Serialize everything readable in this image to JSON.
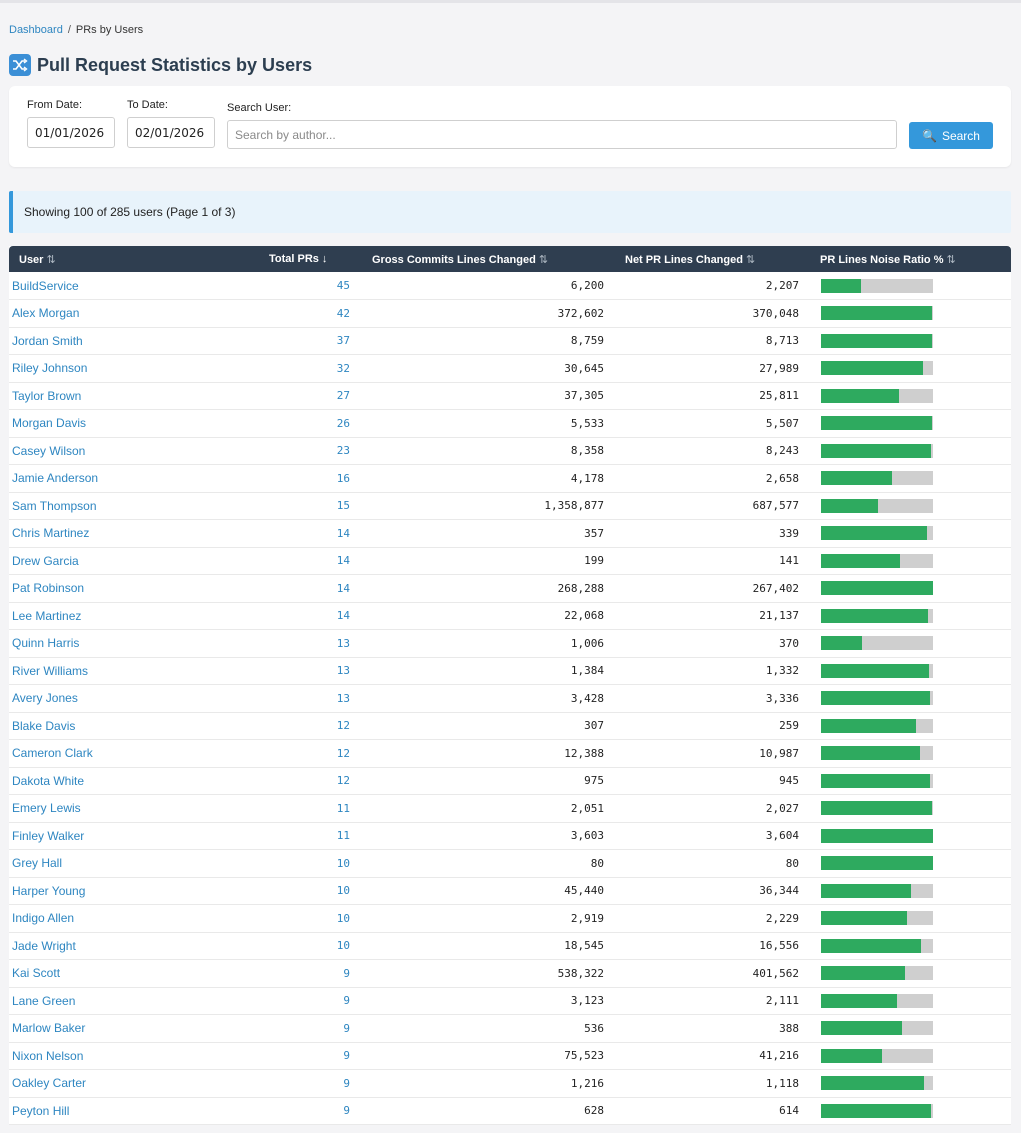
{
  "breadcrumb": {
    "home": "Dashboard",
    "separator": "/",
    "current": "PRs by Users"
  },
  "page": {
    "title": "Pull Request Statistics by Users",
    "icon": "shuffle-icon"
  },
  "filters": {
    "from_label": "From Date:",
    "from_value": "01/01/2026",
    "to_label": "To Date:",
    "to_value": "02/01/2026",
    "search_label": "Search User:",
    "search_placeholder": "Search by author...",
    "search_button": "Search"
  },
  "info": "Showing 100 of 285 users (Page 1 of 3)",
  "table": {
    "columns": [
      {
        "label": "User",
        "sort": "⇅"
      },
      {
        "label": "Total PRs",
        "sort": "↓"
      },
      {
        "label": "Gross Commits Lines Changed",
        "sort": "⇅"
      },
      {
        "label": "Net PR Lines Changed",
        "sort": "⇅"
      },
      {
        "label": "PR Lines Noise Ratio %",
        "sort": "⇅"
      }
    ],
    "rows": [
      {
        "user": "BuildService",
        "prs": "45",
        "gross": "6,200",
        "net": "2,207",
        "ratio": 0.356
      },
      {
        "user": "Alex Morgan",
        "prs": "42",
        "gross": "372,602",
        "net": "370,048",
        "ratio": 0.993
      },
      {
        "user": "Jordan Smith",
        "prs": "37",
        "gross": "8,759",
        "net": "8,713",
        "ratio": 0.995
      },
      {
        "user": "Riley Johnson",
        "prs": "32",
        "gross": "30,645",
        "net": "27,989",
        "ratio": 0.913
      },
      {
        "user": "Taylor Brown",
        "prs": "27",
        "gross": "37,305",
        "net": "25,811",
        "ratio": 0.692
      },
      {
        "user": "Morgan Davis",
        "prs": "26",
        "gross": "5,533",
        "net": "5,507",
        "ratio": 0.995
      },
      {
        "user": "Casey Wilson",
        "prs": "23",
        "gross": "8,358",
        "net": "8,243",
        "ratio": 0.986
      },
      {
        "user": "Jamie Anderson",
        "prs": "16",
        "gross": "4,178",
        "net": "2,658",
        "ratio": 0.636
      },
      {
        "user": "Sam Thompson",
        "prs": "15",
        "gross": "1,358,877",
        "net": "687,577",
        "ratio": 0.506
      },
      {
        "user": "Chris Martinez",
        "prs": "14",
        "gross": "357",
        "net": "339",
        "ratio": 0.95
      },
      {
        "user": "Drew Garcia",
        "prs": "14",
        "gross": "199",
        "net": "141",
        "ratio": 0.709
      },
      {
        "user": "Pat Robinson",
        "prs": "14",
        "gross": "268,288",
        "net": "267,402",
        "ratio": 0.997
      },
      {
        "user": "Lee Martinez",
        "prs": "14",
        "gross": "22,068",
        "net": "21,137",
        "ratio": 0.958
      },
      {
        "user": "Quinn Harris",
        "prs": "13",
        "gross": "1,006",
        "net": "370",
        "ratio": 0.368
      },
      {
        "user": "River Williams",
        "prs": "13",
        "gross": "1,384",
        "net": "1,332",
        "ratio": 0.962
      },
      {
        "user": "Avery Jones",
        "prs": "13",
        "gross": "3,428",
        "net": "3,336",
        "ratio": 0.973
      },
      {
        "user": "Blake Davis",
        "prs": "12",
        "gross": "307",
        "net": "259",
        "ratio": 0.844
      },
      {
        "user": "Cameron Clark",
        "prs": "12",
        "gross": "12,388",
        "net": "10,987",
        "ratio": 0.887
      },
      {
        "user": "Dakota White",
        "prs": "12",
        "gross": "975",
        "net": "945",
        "ratio": 0.969
      },
      {
        "user": "Emery Lewis",
        "prs": "11",
        "gross": "2,051",
        "net": "2,027",
        "ratio": 0.988
      },
      {
        "user": "Finley Walker",
        "prs": "11",
        "gross": "3,603",
        "net": "3,604",
        "ratio": 1.0
      },
      {
        "user": "Grey Hall",
        "prs": "10",
        "gross": "80",
        "net": "80",
        "ratio": 1.0
      },
      {
        "user": "Harper Young",
        "prs": "10",
        "gross": "45,440",
        "net": "36,344",
        "ratio": 0.8
      },
      {
        "user": "Indigo Allen",
        "prs": "10",
        "gross": "2,919",
        "net": "2,229",
        "ratio": 0.764
      },
      {
        "user": "Jade Wright",
        "prs": "10",
        "gross": "18,545",
        "net": "16,556",
        "ratio": 0.893
      },
      {
        "user": "Kai Scott",
        "prs": "9",
        "gross": "538,322",
        "net": "401,562",
        "ratio": 0.746
      },
      {
        "user": "Lane Green",
        "prs": "9",
        "gross": "3,123",
        "net": "2,111",
        "ratio": 0.676
      },
      {
        "user": "Marlow Baker",
        "prs": "9",
        "gross": "536",
        "net": "388",
        "ratio": 0.724
      },
      {
        "user": "Nixon Nelson",
        "prs": "9",
        "gross": "75,523",
        "net": "41,216",
        "ratio": 0.546
      },
      {
        "user": "Oakley Carter",
        "prs": "9",
        "gross": "1,216",
        "net": "1,118",
        "ratio": 0.919
      },
      {
        "user": "Peyton Hill",
        "prs": "9",
        "gross": "628",
        "net": "614",
        "ratio": 0.978
      }
    ]
  },
  "colors": {
    "accent": "#3498db",
    "header_bg": "#2f3e50",
    "bar_fill": "#2eaa5f",
    "bar_track": "#cfcfcf",
    "link": "#2e86c1"
  }
}
